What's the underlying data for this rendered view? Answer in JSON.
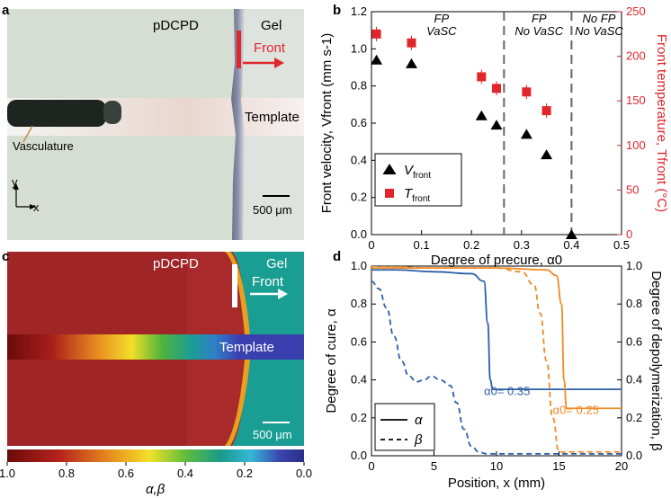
{
  "panels": {
    "a": {
      "label": "a",
      "texts": {
        "pdcpd": "pDCPD",
        "gel": "Gel",
        "front": "Front",
        "vasculature": "Vasculature",
        "template": "Template",
        "scalebar": "500 μm",
        "axis_y": "y",
        "axis_x": "x"
      }
    },
    "b": {
      "label": "b"
    },
    "c": {
      "label": "c",
      "texts": {
        "pdcpd": "pDCPD",
        "gel": "Gel",
        "front": "Front",
        "template": "Template",
        "scalebar": "500 μm"
      },
      "colorbar": {
        "ticks": [
          "1.0",
          "0.8",
          "0.6",
          "0.4",
          "0.2",
          "0.0"
        ],
        "label": "α,β"
      }
    },
    "d": {
      "label": "d"
    }
  },
  "chart_data": [
    {
      "type": "scatter",
      "panel": "b",
      "xlabel": "Degree of precure, α0",
      "ylabel_left": "Front velocity, Vfront (mm s-1)",
      "ylabel_right": "Front temperature, Tfront (°C)",
      "xlim": [
        0,
        0.5
      ],
      "ylim_left": [
        0,
        1.2
      ],
      "ylim_right": [
        0,
        250
      ],
      "x_ticks": [
        "0",
        "0.1",
        "0.2",
        "0.3",
        "0.4",
        "0.5"
      ],
      "y_ticks_left": [
        "0.0",
        "0.2",
        "0.4",
        "0.6",
        "0.8",
        "1.0",
        "1.2"
      ],
      "y_ticks_right": [
        "0",
        "50",
        "100",
        "150",
        "200",
        "250"
      ],
      "regions": [
        {
          "label_line1": "FP",
          "label_line2": "VaSC"
        },
        {
          "label_line1": "FP",
          "label_line2": "No VaSC"
        },
        {
          "label_line1": "No FP",
          "label_line2": "No VaSC"
        }
      ],
      "dividers_x": [
        0.265,
        0.4
      ],
      "series": [
        {
          "name": "Vfront",
          "axis": "left",
          "color": "#000000",
          "marker": "triangle",
          "x": [
            0.01,
            0.08,
            0.22,
            0.25,
            0.31,
            0.35,
            0.4
          ],
          "y": [
            0.94,
            0.92,
            0.64,
            0.59,
            0.54,
            0.43,
            0.0
          ]
        },
        {
          "name": "Tfront",
          "axis": "right",
          "color": "#e0252b",
          "marker": "square",
          "x": [
            0.01,
            0.08,
            0.22,
            0.25,
            0.31,
            0.35
          ],
          "y": [
            225,
            215,
            177,
            164,
            160,
            139
          ]
        }
      ],
      "legend": [
        {
          "symbol": "triangle",
          "main": "V",
          "sub": "front"
        },
        {
          "symbol": "square",
          "main": "T",
          "sub": "front"
        }
      ],
      "legend_position": "lower-left"
    },
    {
      "type": "line",
      "panel": "d",
      "xlabel": "Position, x (mm)",
      "ylabel_left": "Degree of cure, α",
      "ylabel_right": "Degree of depolymerization, β",
      "xlim": [
        0,
        20
      ],
      "ylim": [
        0,
        1.0
      ],
      "x_ticks": [
        "0",
        "5",
        "10",
        "15",
        "20"
      ],
      "y_ticks": [
        "0.0",
        "0.2",
        "0.4",
        "0.6",
        "0.8",
        "1.0"
      ],
      "annotations": [
        {
          "text": "α0= 0.35",
          "color": "#2c5fa8"
        },
        {
          "text": "α0= 0.25",
          "color": "#f08a24"
        }
      ],
      "series": [
        {
          "name": "α (α0=0.35)",
          "color": "#2c5fa8",
          "dash": "solid",
          "x": [
            0,
            2,
            5,
            8,
            9,
            9.3,
            9.5,
            9.7,
            20
          ],
          "y": [
            0.98,
            0.98,
            0.97,
            0.96,
            0.92,
            0.7,
            0.4,
            0.35,
            0.35
          ]
        },
        {
          "name": "β (α0=0.35)",
          "color": "#2c5fa8",
          "dash": "dashed",
          "x": [
            0,
            0.6,
            1.2,
            1.8,
            2.4,
            3.0,
            3.6,
            4.2,
            4.8,
            5.5,
            6.3,
            6.8,
            7.4,
            8.0,
            8.6,
            9.2,
            10,
            12,
            20
          ],
          "y": [
            0.92,
            0.88,
            0.78,
            0.63,
            0.5,
            0.42,
            0.39,
            0.4,
            0.42,
            0.4,
            0.37,
            0.28,
            0.14,
            0.05,
            0.02,
            0.01,
            0.01,
            0.01,
            0.01
          ]
        },
        {
          "name": "α (α0=0.25)",
          "color": "#f08a24",
          "dash": "solid",
          "x": [
            0,
            5,
            10,
            14,
            14.8,
            15.2,
            15.4,
            15.6,
            20
          ],
          "y": [
            0.99,
            0.99,
            0.99,
            0.98,
            0.95,
            0.8,
            0.4,
            0.25,
            0.25
          ]
        },
        {
          "name": "β (α0=0.25)",
          "color": "#f08a24",
          "dash": "dashed",
          "x": [
            0,
            5,
            10,
            12,
            13,
            13.5,
            14,
            14.5,
            15,
            20
          ],
          "y": [
            1.0,
            0.99,
            0.99,
            0.97,
            0.9,
            0.75,
            0.5,
            0.2,
            0.02,
            0.02
          ]
        }
      ],
      "legend": [
        {
          "style": "solid",
          "label": "α"
        },
        {
          "style": "dashed",
          "label": "β"
        }
      ],
      "legend_position": "lower-left"
    }
  ]
}
